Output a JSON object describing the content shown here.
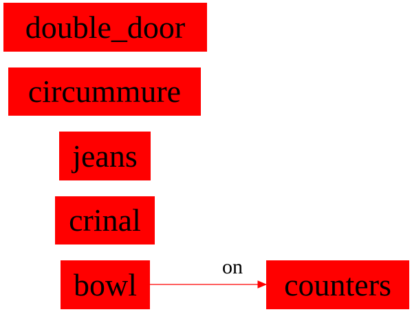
{
  "diagram": {
    "nodes": [
      {
        "id": "double_door",
        "label": "double_door"
      },
      {
        "id": "circummure",
        "label": "circummure"
      },
      {
        "id": "jeans",
        "label": "jeans"
      },
      {
        "id": "crinal",
        "label": "crinal"
      },
      {
        "id": "bowl",
        "label": "bowl"
      },
      {
        "id": "counters",
        "label": "counters"
      }
    ],
    "edges": [
      {
        "from": "bowl",
        "to": "counters",
        "label": "on"
      }
    ]
  },
  "colors": {
    "node_fill": "#ff0000",
    "edge_stroke": "#ff0000",
    "text": "#000000"
  }
}
